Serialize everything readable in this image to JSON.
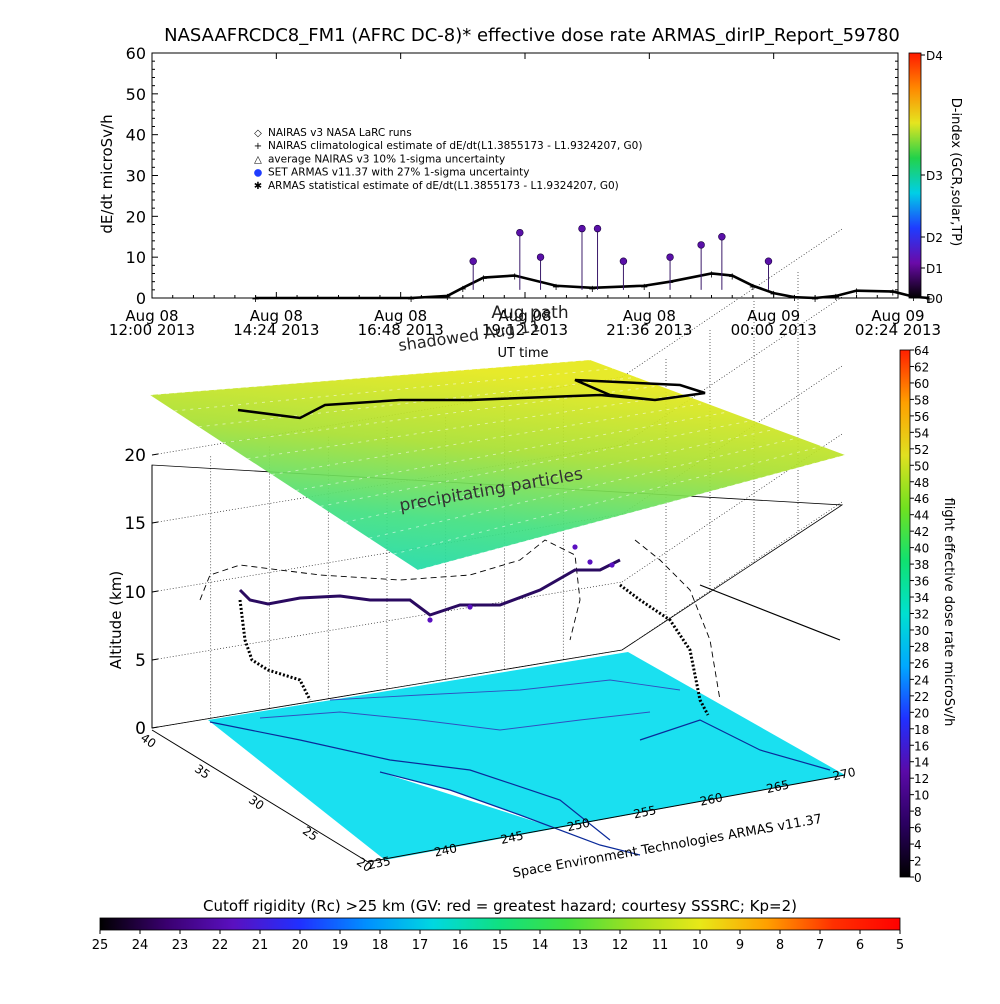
{
  "title": "NASAAFRCDC8_FM1 (AFRC DC-8)* effective dose rate ARMAS_dirIP_Report_59780",
  "chart_data": [
    {
      "type": "scatter",
      "name": "effective dose rate time series",
      "ylabel": "dE/dt microSv/h",
      "xlabel": "UT time",
      "ylim": [
        0,
        60
      ],
      "yticks": [
        "0",
        "10",
        "20",
        "30",
        "40",
        "50",
        "60"
      ],
      "xticks": [
        {
          "top": "Aug 08",
          "bottom": "12:00 2013"
        },
        {
          "top": "Aug 08",
          "bottom": "14:24 2013"
        },
        {
          "top": "Aug 08",
          "bottom": "16:48 2013"
        },
        {
          "top": "Aug 08",
          "bottom": "19:12 2013"
        },
        {
          "top": "Aug 08",
          "bottom": "21:36 2013"
        },
        {
          "top": "Aug 09",
          "bottom": "00:00 2013"
        },
        {
          "top": "Aug 09",
          "bottom": "02:24 2013"
        }
      ],
      "overlay_labels": [
        "Aug path",
        "shadowed Aug 11"
      ],
      "legend": [
        {
          "symbol": "◇",
          "text": "NAIRAS v3 NASA LaRC runs"
        },
        {
          "symbol": "+",
          "text": "NAIRAS climatological estimate of dE/dt(L1.3855173 - L1.9324207, G0)"
        },
        {
          "symbol": "△",
          "text": "average NAIRAS v3 10% 1-sigma uncertainty"
        },
        {
          "symbol": "●",
          "text": "SET ARMAS v11.37 with 27% 1-sigma uncertainty"
        },
        {
          "symbol": "✱",
          "text": "ARMAS statistical estimate of dE/dt(L1.3855173 - L1.9324207, G0)"
        }
      ],
      "x_unit": "hours after Aug 08 12:00 2013",
      "series": [
        {
          "name": "NAIRAS climatological estimate",
          "x": [
            2.0,
            5.0,
            5.7,
            6.0,
            6.4,
            7.0,
            7.8,
            8.5,
            9.5,
            10.0,
            10.8,
            11.2,
            11.6,
            12.0,
            12.4,
            12.8,
            13.2,
            13.6,
            14.3,
            14.7,
            15.0
          ],
          "y": [
            0,
            0,
            0.5,
            2.5,
            5.0,
            5.5,
            3.0,
            2.5,
            3.0,
            4.0,
            6.0,
            5.5,
            3.0,
            1.2,
            0.2,
            0,
            0.5,
            1.8,
            1.6,
            0.3,
            0
          ]
        },
        {
          "name": "SET ARMAS v11.37",
          "x": [
            6.2,
            7.1,
            7.5,
            8.3,
            8.6,
            9.1,
            10.0,
            10.6,
            11.0,
            11.9
          ],
          "y": [
            9,
            16,
            10,
            17,
            17,
            9,
            10,
            13,
            15,
            9
          ]
        }
      ],
      "colorbar": {
        "label": "D-index (GCR,solar,TP)",
        "ticks": [
          "D0",
          "D1",
          "D2",
          "D3",
          "D4"
        ],
        "colors": [
          "#000000",
          "#6a0aa8",
          "#1f3cff",
          "#00cfe6",
          "#22d24a",
          "#e5e51f",
          "#ff8800",
          "#ff1a00"
        ]
      }
    },
    {
      "type": "scatter",
      "name": "3D flight path view",
      "zlabel": "Altitude (km)",
      "zticks": [
        "0",
        "5",
        "10",
        "15",
        "20"
      ],
      "lat_ticks": [
        "40",
        "35",
        "30",
        "25",
        "20"
      ],
      "lon_ticks": [
        "235",
        "240",
        "245",
        "250",
        "255",
        "260",
        "265",
        "270"
      ],
      "annotation": "precipitating particles",
      "footer_label": "Space Environment Technologies ARMAS v11.37",
      "colorbar": {
        "label": "flight effective dose rate microSv/h",
        "min": 0,
        "max": 64,
        "ticks": [
          "0",
          "2",
          "4",
          "6",
          "8",
          "10",
          "12",
          "14",
          "16",
          "18",
          "20",
          "22",
          "24",
          "26",
          "28",
          "30",
          "32",
          "34",
          "36",
          "38",
          "40",
          "42",
          "44",
          "46",
          "48",
          "50",
          "52",
          "54",
          "56",
          "58",
          "60",
          "62",
          "64"
        ],
        "colors": [
          "#000000",
          "#2a0060",
          "#5a0aa8",
          "#2030ff",
          "#00a8ff",
          "#00e0d0",
          "#10e070",
          "#70e020",
          "#e0e020",
          "#ffa000",
          "#ff2000"
        ]
      },
      "surface_color": "#1ae0f0",
      "surface_top_gradient": [
        "#10d8b8",
        "#40e080",
        "#a8e030",
        "#e5e818"
      ]
    },
    {
      "type": "heatmap",
      "name": "cutoff rigidity colorbar",
      "label": "Cutoff rigidity (Rc) >25 km (GV: red = greatest hazard; courtesy SSSRC; Kp=2)",
      "ticks": [
        "25",
        "24",
        "23",
        "22",
        "21",
        "20",
        "19",
        "18",
        "17",
        "16",
        "15",
        "14",
        "13",
        "12",
        "11",
        "10",
        "9",
        "8",
        "7",
        "6",
        "5"
      ],
      "colors": [
        "#000000",
        "#3a0070",
        "#5a10c0",
        "#2030ff",
        "#0090ff",
        "#00d8e0",
        "#10e080",
        "#40e040",
        "#a0e020",
        "#e8e818",
        "#ffa000",
        "#ff3000",
        "#ff0000"
      ]
    }
  ]
}
